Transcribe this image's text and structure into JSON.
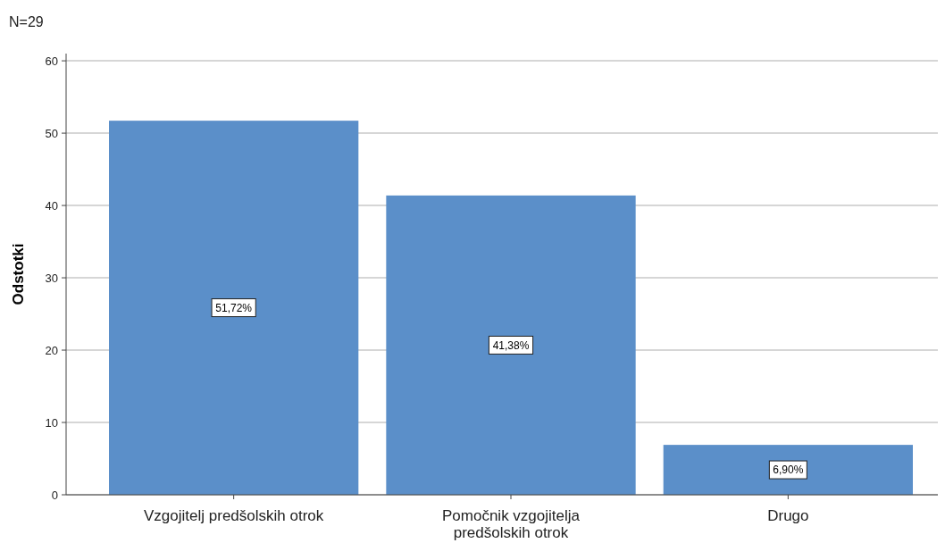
{
  "chart_data": {
    "type": "bar",
    "ylabel": "Odstotki",
    "annotations": [
      "N=29"
    ],
    "categories": [
      "Vzgojitelj predšolskih otrok",
      "Pomočnik vzgojitelja predšolskih otrok",
      "Drugo"
    ],
    "values": [
      51.72,
      41.38,
      6.9
    ],
    "value_labels": [
      "51,72%",
      "41,38%",
      "6,90%"
    ],
    "color": "#5b8fc9",
    "ylim": [
      0,
      61
    ],
    "yticks": [
      0,
      10,
      20,
      30,
      40,
      50,
      60
    ],
    "grid": "y"
  }
}
